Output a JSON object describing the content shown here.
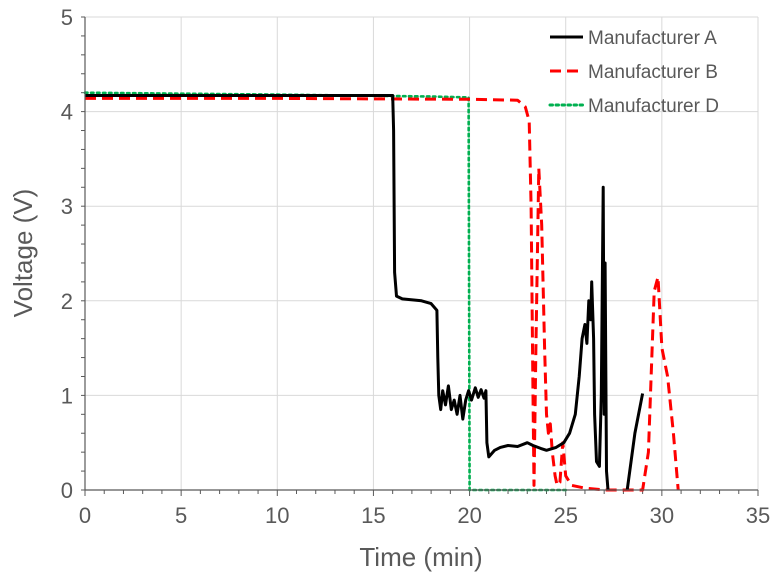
{
  "chart_data": {
    "type": "line",
    "xlabel": "Time (min)",
    "ylabel": "Voltage (V)",
    "xlim": [
      0,
      35
    ],
    "ylim": [
      0,
      5
    ],
    "xticks": [
      0,
      5,
      10,
      15,
      20,
      25,
      30,
      35
    ],
    "yticks": [
      0,
      1,
      2,
      3,
      4,
      5
    ],
    "grid": true,
    "legend": "top-right",
    "series": [
      {
        "name": "Manufacturer A",
        "color": "#000000",
        "dash": "solid",
        "segments": [
          [
            [
              0,
              4.17
            ],
            [
              8,
              4.17
            ],
            [
              16.0,
              4.17
            ],
            [
              16.05,
              3.8
            ],
            [
              16.1,
              2.3
            ],
            [
              16.2,
              2.05
            ],
            [
              16.5,
              2.02
            ],
            [
              17.5,
              2.0
            ],
            [
              18.0,
              1.97
            ],
            [
              18.3,
              1.9
            ],
            [
              18.35,
              1.4
            ],
            [
              18.4,
              1.0
            ],
            [
              18.5,
              0.85
            ],
            [
              18.6,
              1.05
            ],
            [
              18.75,
              0.9
            ],
            [
              18.9,
              1.1
            ],
            [
              19.05,
              0.85
            ],
            [
              19.2,
              0.95
            ],
            [
              19.35,
              0.8
            ],
            [
              19.5,
              1.0
            ],
            [
              19.65,
              0.75
            ],
            [
              19.8,
              0.95
            ],
            [
              19.95,
              1.05
            ],
            [
              20.1,
              0.95
            ],
            [
              20.3,
              1.08
            ],
            [
              20.45,
              0.98
            ],
            [
              20.6,
              1.06
            ],
            [
              20.75,
              0.97
            ],
            [
              20.85,
              1.05
            ],
            [
              20.9,
              0.5
            ],
            [
              21.0,
              0.35
            ],
            [
              21.3,
              0.42
            ],
            [
              21.6,
              0.45
            ],
            [
              22.0,
              0.47
            ],
            [
              22.5,
              0.46
            ],
            [
              23.0,
              0.5
            ],
            [
              23.3,
              0.47
            ],
            [
              23.7,
              0.44
            ],
            [
              24.0,
              0.42
            ],
            [
              24.5,
              0.45
            ],
            [
              24.9,
              0.5
            ],
            [
              25.2,
              0.6
            ],
            [
              25.5,
              0.8
            ],
            [
              25.7,
              1.2
            ],
            [
              25.85,
              1.6
            ],
            [
              26.0,
              1.75
            ],
            [
              26.1,
              1.55
            ],
            [
              26.2,
              2.0
            ],
            [
              26.3,
              1.8
            ],
            [
              26.35,
              2.2
            ],
            [
              26.45,
              1.6
            ],
            [
              26.5,
              0.8
            ],
            [
              26.6,
              0.3
            ],
            [
              26.75,
              0.25
            ],
            [
              26.85,
              1.0
            ],
            [
              26.95,
              3.2
            ],
            [
              27.0,
              0.8
            ],
            [
              27.05,
              2.4
            ],
            [
              27.12,
              0.2
            ],
            [
              27.2,
              0.0
            ]
          ],
          [
            [
              28.2,
              0.0
            ],
            [
              28.6,
              0.6
            ],
            [
              29.0,
              1.02
            ]
          ]
        ]
      },
      {
        "name": "Manufacturer B",
        "color": "#ff0000",
        "dash": "dashed",
        "segments": [
          [
            [
              0,
              4.14
            ],
            [
              10,
              4.14
            ],
            [
              20,
              4.13
            ],
            [
              22.5,
              4.12
            ],
            [
              22.9,
              4.05
            ],
            [
              23.1,
              3.9
            ],
            [
              23.2,
              3.0
            ],
            [
              23.3,
              1.0
            ],
            [
              23.35,
              0.05
            ],
            [
              23.45,
              1.5
            ],
            [
              23.6,
              3.4
            ],
            [
              23.75,
              2.8
            ],
            [
              23.9,
              1.5
            ],
            [
              24.0,
              0.8
            ],
            [
              24.1,
              0.6
            ],
            [
              24.2,
              0.7
            ],
            [
              24.3,
              0.4
            ],
            [
              24.45,
              0.15
            ],
            [
              24.55,
              0.05
            ],
            [
              24.7,
              0.08
            ],
            [
              24.85,
              0.5
            ],
            [
              25.0,
              0.15
            ],
            [
              25.3,
              0.05
            ],
            [
              26.0,
              0.02
            ],
            [
              27.0,
              0.0
            ],
            [
              29.0,
              0.0
            ],
            [
              29.3,
              0.4
            ],
            [
              29.6,
              2.1
            ],
            [
              29.8,
              2.25
            ],
            [
              30.0,
              1.5
            ],
            [
              30.3,
              1.2
            ],
            [
              30.6,
              0.6
            ],
            [
              30.85,
              0.0
            ]
          ]
        ]
      },
      {
        "name": "Manufacturer D",
        "color": "#00b050",
        "dash": "dotted",
        "segments": [
          [
            [
              0,
              4.2
            ],
            [
              10,
              4.18
            ],
            [
              18,
              4.16
            ],
            [
              19.95,
              4.15
            ],
            [
              20.0,
              0.0
            ],
            [
              22,
              0.0
            ],
            [
              24,
              0.0
            ],
            [
              25,
              0.0
            ]
          ]
        ]
      }
    ]
  }
}
